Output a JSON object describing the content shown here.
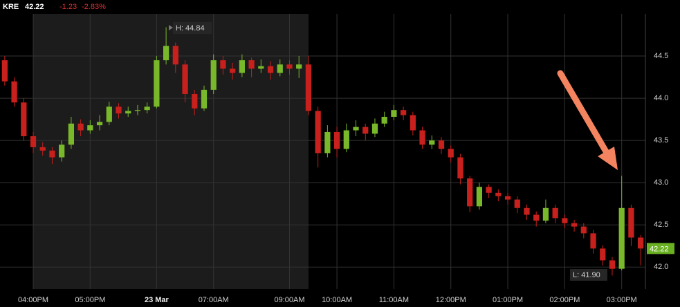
{
  "header": {
    "symbol": "KRE",
    "last": "42.22",
    "change": "-1.23",
    "change_pct": "-2.83%"
  },
  "chart_data": {
    "type": "candlestick",
    "categories": [
      null,
      null,
      null,
      "04:00PM",
      null,
      null,
      null,
      null,
      null,
      "05:00PM",
      null,
      null,
      null,
      null,
      null,
      null,
      "23 Mar",
      null,
      null,
      null,
      null,
      null,
      "07:00AM",
      null,
      null,
      null,
      null,
      null,
      null,
      null,
      "09:00AM",
      null,
      null,
      null,
      null,
      "10:00AM",
      null,
      null,
      null,
      null,
      null,
      "11:00AM",
      null,
      null,
      null,
      null,
      null,
      "12:00PM",
      null,
      null,
      null,
      null,
      null,
      "01:00PM",
      null,
      null,
      null,
      null,
      null,
      "02:00PM",
      null,
      null,
      null,
      null,
      null,
      "03:00PM",
      null,
      null
    ],
    "open": [
      44.45,
      44.2,
      43.95,
      43.55,
      43.42,
      43.38,
      43.3,
      43.45,
      43.7,
      43.62,
      43.68,
      43.72,
      43.9,
      43.82,
      43.85,
      43.86,
      43.9,
      44.45,
      44.62,
      44.4,
      44.05,
      43.88,
      44.1,
      44.45,
      44.35,
      44.3,
      44.45,
      44.35,
      44.38,
      44.3,
      44.4,
      44.35,
      44.4,
      43.85,
      43.35,
      43.6,
      43.4,
      43.62,
      43.66,
      43.58,
      43.7,
      43.78,
      43.86,
      43.8,
      43.62,
      43.45,
      43.5,
      43.4,
      43.3,
      43.05,
      42.72,
      42.95,
      42.88,
      42.84,
      42.8,
      42.7,
      42.62,
      42.55,
      42.7,
      42.58,
      42.52,
      42.48,
      42.4,
      42.22,
      42.08,
      41.98,
      42.7,
      42.35
    ],
    "high": [
      44.5,
      44.25,
      44.0,
      43.6,
      43.48,
      43.42,
      43.5,
      43.78,
      43.75,
      43.74,
      43.8,
      43.96,
      43.94,
      43.9,
      43.92,
      43.95,
      44.5,
      44.84,
      44.66,
      44.45,
      44.1,
      44.15,
      44.52,
      44.5,
      44.42,
      44.52,
      44.48,
      44.46,
      44.44,
      44.46,
      44.45,
      44.5,
      44.5,
      43.9,
      43.68,
      43.66,
      43.7,
      43.74,
      43.7,
      43.76,
      43.84,
      43.92,
      43.9,
      43.84,
      43.66,
      43.56,
      43.54,
      43.44,
      43.34,
      43.08,
      43.0,
      42.98,
      42.92,
      42.88,
      42.84,
      42.74,
      42.66,
      42.8,
      42.74,
      42.62,
      42.56,
      42.52,
      42.44,
      42.26,
      42.12,
      43.08,
      42.74,
      42.38
    ],
    "low": [
      44.15,
      43.9,
      43.5,
      43.35,
      43.32,
      43.22,
      43.25,
      43.4,
      43.55,
      43.58,
      43.62,
      43.68,
      43.76,
      43.78,
      43.8,
      43.82,
      43.88,
      44.4,
      44.3,
      43.95,
      43.8,
      43.85,
      44.05,
      44.28,
      44.22,
      44.25,
      44.25,
      44.3,
      44.22,
      44.26,
      44.28,
      44.24,
      43.8,
      43.18,
      43.3,
      43.3,
      43.36,
      43.55,
      43.5,
      43.54,
      43.66,
      43.74,
      43.74,
      43.56,
      43.4,
      43.4,
      43.34,
      43.24,
      42.98,
      42.65,
      42.68,
      42.82,
      42.78,
      42.74,
      42.64,
      42.56,
      42.48,
      42.52,
      42.52,
      42.46,
      42.42,
      42.34,
      42.16,
      42.02,
      41.9,
      41.96,
      42.25,
      42.02
    ],
    "close": [
      44.2,
      43.95,
      43.55,
      43.42,
      43.38,
      43.3,
      43.45,
      43.7,
      43.62,
      43.68,
      43.72,
      43.9,
      43.82,
      43.85,
      43.86,
      43.9,
      44.45,
      44.62,
      44.4,
      44.05,
      43.88,
      44.1,
      44.45,
      44.35,
      44.3,
      44.45,
      44.35,
      44.38,
      44.3,
      44.4,
      44.35,
      44.4,
      43.85,
      43.35,
      43.6,
      43.4,
      43.62,
      43.66,
      43.58,
      43.7,
      43.78,
      43.86,
      43.8,
      43.62,
      43.45,
      43.5,
      43.4,
      43.3,
      43.05,
      42.72,
      42.95,
      42.88,
      42.84,
      42.8,
      42.7,
      42.62,
      42.55,
      42.7,
      42.58,
      42.52,
      42.48,
      42.4,
      42.22,
      42.08,
      41.98,
      42.7,
      42.35,
      42.22
    ],
    "up_color": "#78b82a",
    "down_color": "#c8201c",
    "ylim": [
      41.74,
      45.0
    ],
    "yticks": [
      {
        "value": 42,
        "label": "42.0"
      },
      42.5,
      {
        "value": 43,
        "label": "43.0"
      },
      43.5,
      {
        "value": 44,
        "label": "44.0"
      },
      44.5
    ],
    "grid": true,
    "annotations": [
      "H: 44.84",
      "L: 41.90"
    ]
  }
}
